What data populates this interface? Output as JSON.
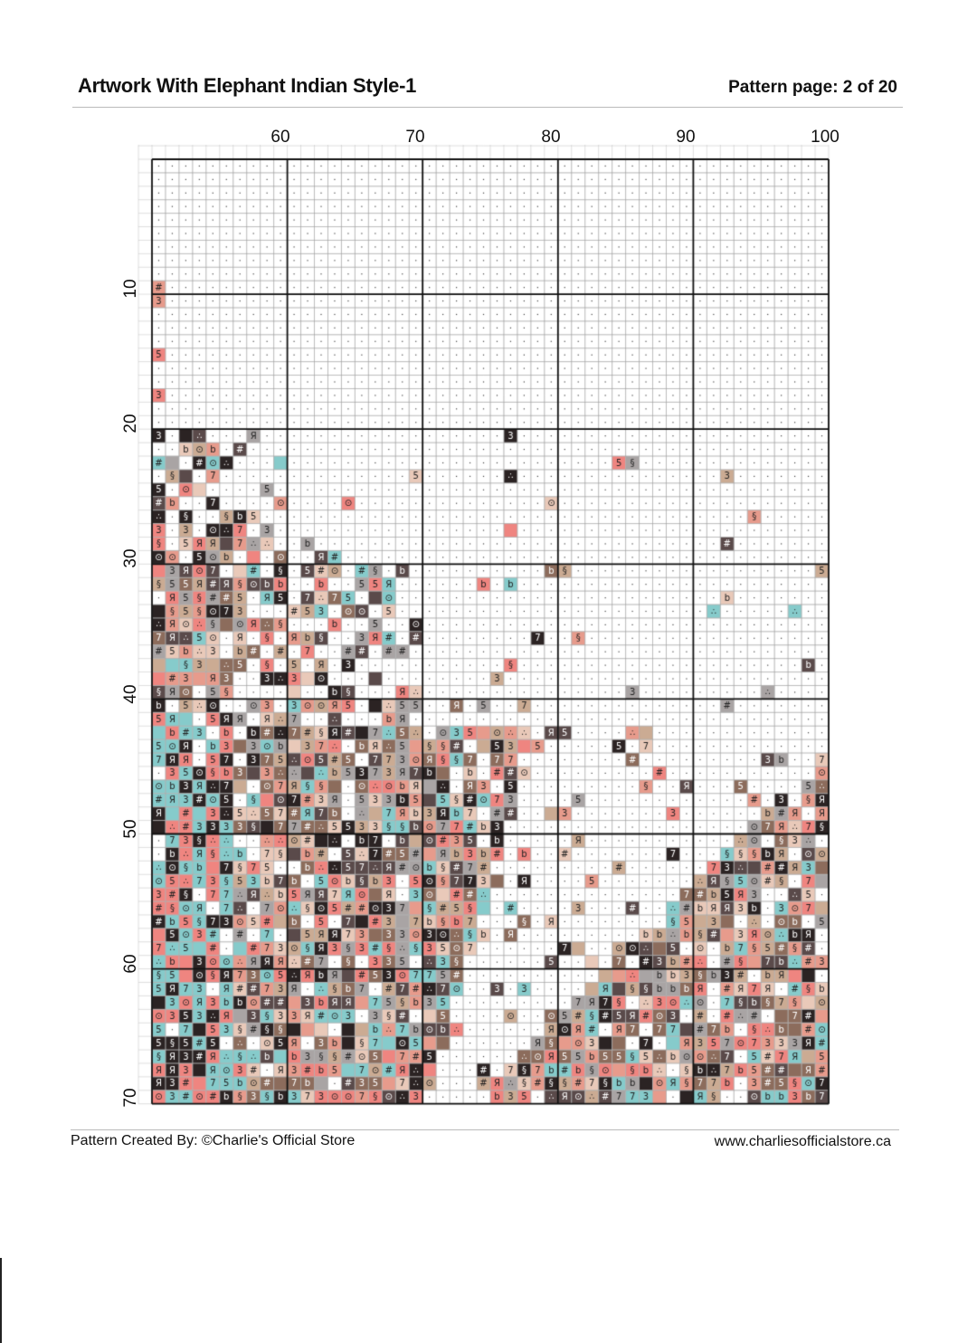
{
  "header": {
    "title": "Artwork With Elephant Indian Style-1",
    "page_label": "Pattern page: 2 of 20"
  },
  "grid": {
    "column_labels": [
      "60",
      "70",
      "80",
      "90",
      "100"
    ],
    "row_labels": [
      "10",
      "20",
      "30",
      "40",
      "50",
      "60",
      "70"
    ],
    "palette": [
      "#2b2323",
      "#e79b8c",
      "#ef8580",
      "#86cbcb",
      "#cbab93",
      "#8c6c5c",
      "#e9c9b9",
      "#5a4a4a",
      "#a9a4a4"
    ]
  },
  "footer": {
    "credit": "Pattern Created By: ©Charlie's Official Store",
    "website": "www.charliesofficialstore.ca"
  }
}
